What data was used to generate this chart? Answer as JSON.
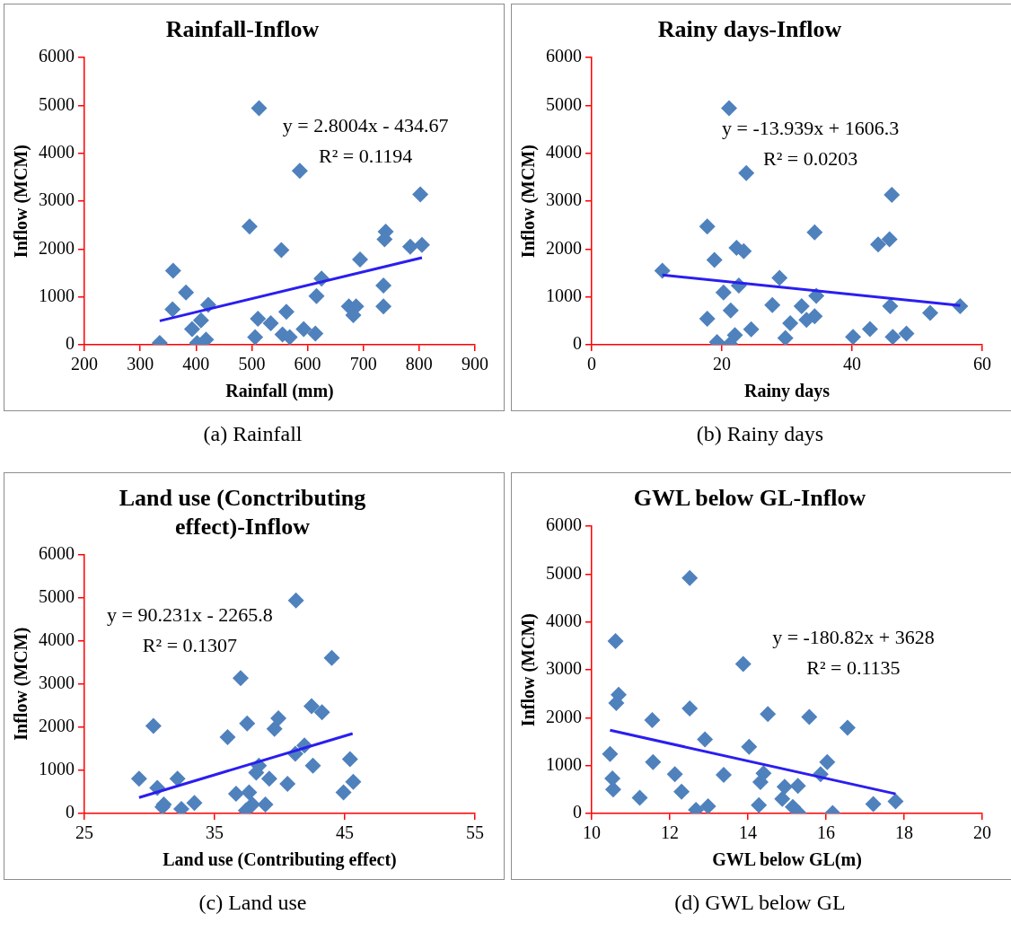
{
  "chart_data": [
    {
      "type": "scatter",
      "title": "Rainfall-Inflow",
      "xlabel": "Rainfall (mm)",
      "ylabel": "Inflow (MCM)",
      "xlim": [
        200,
        900
      ],
      "xticks": [
        200,
        300,
        400,
        500,
        600,
        700,
        800,
        900
      ],
      "ylim": [
        0,
        6000
      ],
      "yticks": [
        0,
        1000,
        2000,
        3000,
        4000,
        5000,
        6000
      ],
      "grid": false,
      "legend": false,
      "series": [
        {
          "marker": "diamond",
          "color": "#4f81bd",
          "x": [
            513,
            586,
            802,
            496,
            553,
            359,
            740,
            738,
            784,
            805,
            694,
            382,
            358,
            422,
            625,
            616,
            736,
            736,
            674,
            687,
            682,
            562,
            511,
            534,
            409,
            393,
            418,
            402,
            335,
            506,
            555,
            568,
            593,
            614
          ],
          "values": [
            4945,
            3636,
            3142,
            2473,
            1978,
            1549,
            2364,
            2204,
            2051,
            2087,
            1782,
            1091,
            742,
            836,
            1382,
            1018,
            1236,
            800,
            800,
            800,
            618,
            691,
            545,
            451,
            509,
            327,
            109,
            36,
            36,
            160,
            218,
            160,
            327,
            233
          ]
        },
        {
          "type": "line",
          "marker": "none",
          "color": "#2a1ef0",
          "x": [
            335,
            805
          ],
          "values": [
            500,
            1820
          ]
        }
      ],
      "annotations": [
        "y = 2.8004x - 434.67",
        "R² = 0.1194",
        "(a) Rainfall"
      ]
    },
    {
      "type": "scatter",
      "title": "Rainy days-Inflow",
      "xlabel": "Rainy days",
      "ylabel": "Inflow (MCM)",
      "xlim": [
        0,
        60
      ],
      "xticks": [
        0,
        20,
        40,
        60
      ],
      "ylim": [
        0,
        6000
      ],
      "yticks": [
        0,
        1000,
        2000,
        3000,
        4000,
        5000,
        6000
      ],
      "grid": false,
      "legend": false,
      "series": [
        {
          "marker": "diamond",
          "color": "#4f81bd",
          "x": [
            21.1,
            23.75,
            46.1,
            17.75,
            34.25,
            44,
            45.75,
            22.25,
            23.35,
            18.85,
            10.85,
            28.85,
            22.6,
            20.25,
            34.5,
            27.75,
            32.25,
            45.85,
            56.6,
            52,
            17.75,
            21.35,
            34.25,
            30.5,
            33,
            24.5,
            42.75,
            40.15,
            46.25,
            48.35,
            22,
            19.25,
            21.25,
            29.75
          ],
          "values": [
            4946,
            3586,
            3135,
            2470,
            2348,
            2097,
            2205,
            2026,
            1954,
            1775,
            1546,
            1396,
            1238,
            1095,
            1024,
            830,
            809,
            809,
            809,
            666,
            544,
            716,
            594,
            451,
            520,
            322,
            329,
            165,
            165,
            236,
            200,
            57,
            21,
            143
          ]
        },
        {
          "type": "line",
          "marker": "none",
          "color": "#2a1ef0",
          "x": [
            10.85,
            56.6
          ],
          "values": [
            1460,
            820
          ]
        }
      ],
      "annotations": [
        "y = -13.939x + 1606.3",
        "R² = 0.0203",
        "(b) Rainy days"
      ]
    },
    {
      "type": "scatter",
      "title": "Land use (Conctributing effect)-Inflow",
      "xlabel": "Land use (Contributing effect)",
      "ylabel": "Inflow (MCM)",
      "xlim": [
        25,
        55
      ],
      "xticks": [
        25,
        35,
        45,
        55
      ],
      "ylim": [
        0,
        6000
      ],
      "yticks": [
        0,
        1000,
        2000,
        3000,
        4000,
        5000,
        6000
      ],
      "grid": false,
      "legend": false,
      "series": [
        {
          "marker": "diamond",
          "color": "#4f81bd",
          "x": [
            41.25,
            44,
            37,
            30.3,
            42.45,
            43.25,
            37.5,
            39.9,
            39.6,
            36,
            41.9,
            41.2,
            42.55,
            45.4,
            38.4,
            29.2,
            32.15,
            30.6,
            39.2,
            40.6,
            45.65,
            44.9,
            36.65,
            38.2,
            37.65,
            31.1,
            33.45,
            32.45,
            38.9,
            37.9,
            37.4,
            31
          ],
          "values": [
            4930,
            3601,
            3133,
            2028,
            2483,
            2343,
            2084,
            2203,
            1958,
            1769,
            1573,
            1385,
            1105,
            1259,
            1105,
            804,
            804,
            594,
            804,
            685,
            734,
            490,
            455,
            944,
            490,
            210,
            245,
            105,
            210,
            210,
            70,
            150
          ]
        },
        {
          "type": "line",
          "marker": "none",
          "color": "#2a1ef0",
          "x": [
            29.2,
            45.6
          ],
          "values": [
            370,
            1850
          ]
        }
      ],
      "annotations": [
        "y = 90.231x - 2265.8",
        "R² = 0.1307",
        "(c) Land use"
      ]
    },
    {
      "type": "scatter",
      "title": "GWL below GL-Inflow",
      "xlabel": "GWL below GL(m)",
      "ylabel": "Inflow (MCM)",
      "xlim": [
        10,
        20
      ],
      "xticks": [
        10,
        12,
        14,
        16,
        18,
        20
      ],
      "ylim": [
        0,
        6000
      ],
      "yticks": [
        0,
        1000,
        2000,
        3000,
        4000,
        5000,
        6000
      ],
      "grid": false,
      "legend": false,
      "series": [
        {
          "marker": "diamond",
          "color": "#4f81bd",
          "x": [
            12.51,
            10.61,
            13.88,
            10.69,
            10.63,
            12.51,
            14.51,
            15.57,
            11.55,
            16.55,
            12.9,
            14.03,
            10.47,
            11.57,
            16.03,
            15.86,
            12.13,
            13.38,
            14.4,
            14.32,
            10.53,
            10.55,
            12.3,
            11.23,
            14.94,
            15.28,
            14.88,
            15.15,
            15.3,
            14.28,
            12.67,
            12.98,
            16.17,
            17.21,
            17.78
          ],
          "values": [
            4920,
            3602,
            3123,
            2483,
            2308,
            2193,
            2079,
            2018,
            1950,
            1790,
            1546,
            1394,
            1241,
            1074,
            1074,
            822,
            822,
            807,
            838,
            655,
            731,
            503,
            457,
            327,
            556,
            579,
            305,
            137,
            10,
            175,
            76,
            152,
            10,
            198,
            251
          ]
        },
        {
          "type": "line",
          "marker": "none",
          "color": "#2a1ef0",
          "x": [
            10.47,
            17.78
          ],
          "values": [
            1740,
            410
          ]
        }
      ],
      "annotations": [
        "y = -180.82x + 3628",
        "R² = 0.1135",
        "(d) GWL below GL"
      ]
    }
  ]
}
